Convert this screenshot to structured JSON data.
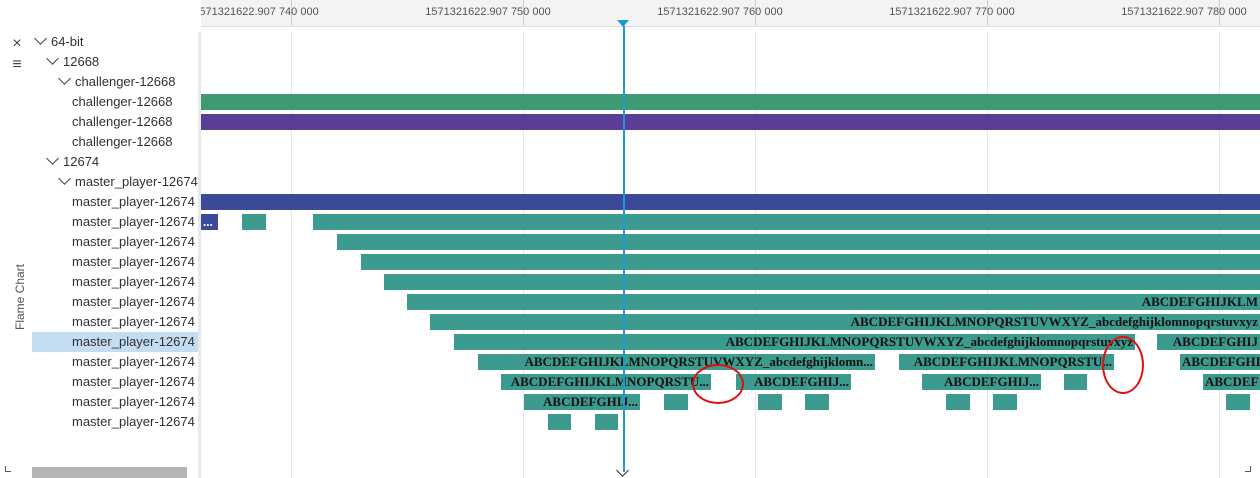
{
  "sidebar": {
    "close_icon": "×",
    "menu_icon": "≡",
    "vertical_label": "Flame Chart"
  },
  "ruler": {
    "ticks": [
      {
        "label": "1571321622.907 740 000"
      },
      {
        "label": "1571321622.907 750 000"
      },
      {
        "label": "1571321622.907 760 000"
      },
      {
        "label": "1571321622.907 770 000"
      },
      {
        "label": "1571321622.907 780 000"
      }
    ]
  },
  "tree": {
    "rows": [
      {
        "label": "64-bit",
        "expanded": true
      },
      {
        "label": "12668",
        "expanded": true
      },
      {
        "label": "challenger-12668",
        "expanded": true
      },
      {
        "label": "challenger-12668"
      },
      {
        "label": "challenger-12668"
      },
      {
        "label": "challenger-12668"
      },
      {
        "label": "12674",
        "expanded": true
      },
      {
        "label": "master_player-12674",
        "expanded": true
      },
      {
        "label": "master_player-12674"
      },
      {
        "label": "master_player-12674"
      },
      {
        "label": "master_player-12674"
      },
      {
        "label": "master_player-12674"
      },
      {
        "label": "master_player-12674"
      },
      {
        "label": "master_player-12674"
      },
      {
        "label": "master_player-12674"
      },
      {
        "label": "master_player-12674",
        "selected": true
      },
      {
        "label": "master_player-12674"
      },
      {
        "label": "master_player-12674"
      },
      {
        "label": "master_player-12674"
      },
      {
        "label": "master_player-12674"
      }
    ]
  },
  "colors": {
    "green": "#3d9a72",
    "purple": "#5b3c96",
    "navy": "#3b4b9a",
    "teal": "#3c9a8e",
    "cursor": "#1a9bd6",
    "annotation": "#e01010",
    "selected_row": "#c4dcf2"
  },
  "flame": {
    "bars": [
      {
        "row": 3,
        "color": "green",
        "text": ""
      },
      {
        "row": 4,
        "color": "purple",
        "text": ""
      },
      {
        "row": 8,
        "color": "navy",
        "text": ""
      },
      {
        "row": 9,
        "color": "navy",
        "text": "..."
      },
      {
        "row": 9,
        "color": "teal",
        "text": ""
      },
      {
        "row": 9,
        "color": "teal",
        "text": ""
      },
      {
        "row": 10,
        "color": "teal",
        "text": ""
      },
      {
        "row": 11,
        "color": "teal",
        "text": ""
      },
      {
        "row": 12,
        "color": "teal",
        "text": ""
      },
      {
        "row": 13,
        "color": "teal",
        "text": "ABCDEFGHIJKLM"
      },
      {
        "row": 14,
        "color": "teal",
        "text": "ABCDEFGHIJKLMNOPQRSTUVWXYZ_abcdefghijklomnopqrstuvxyz"
      },
      {
        "row": 15,
        "color": "teal",
        "text": "ABCDEFGHIJKLMNOPQRSTUVWXYZ_abcdefghijklomnopqrstuvxyz"
      },
      {
        "row": 15,
        "color": "teal",
        "text": "ABCDEFGHIJ"
      },
      {
        "row": 16,
        "color": "teal",
        "text": "ABCDEFGHIJKLMNOPQRSTUVWXYZ_abcdefghijklomn..."
      },
      {
        "row": 16,
        "color": "teal",
        "text": "ABCDEFGHIJKLMNOPQRSTU..."
      },
      {
        "row": 16,
        "color": "teal",
        "text": "ABCDEFGHI"
      },
      {
        "row": 17,
        "color": "teal",
        "text": "ABCDEFGHIJKLMNOPQRSTU..."
      },
      {
        "row": 17,
        "color": "teal",
        "text": "ABCDEFGHIJ..."
      },
      {
        "row": 17,
        "color": "teal",
        "text": "ABCDEFGHIJ..."
      },
      {
        "row": 17,
        "color": "teal",
        "text": ""
      },
      {
        "row": 17,
        "color": "teal",
        "text": "ABCDEF"
      },
      {
        "row": 18,
        "color": "teal",
        "text": "ABCDEFGHIJ..."
      },
      {
        "row": 18,
        "color": "teal",
        "text": ""
      },
      {
        "row": 18,
        "color": "teal",
        "text": ""
      },
      {
        "row": 18,
        "color": "teal",
        "text": ""
      },
      {
        "row": 18,
        "color": "teal",
        "text": ""
      },
      {
        "row": 18,
        "color": "teal",
        "text": ""
      },
      {
        "row": 18,
        "color": "teal",
        "text": ""
      },
      {
        "row": 19,
        "color": "teal",
        "text": ""
      },
      {
        "row": 19,
        "color": "teal",
        "text": ""
      }
    ]
  }
}
